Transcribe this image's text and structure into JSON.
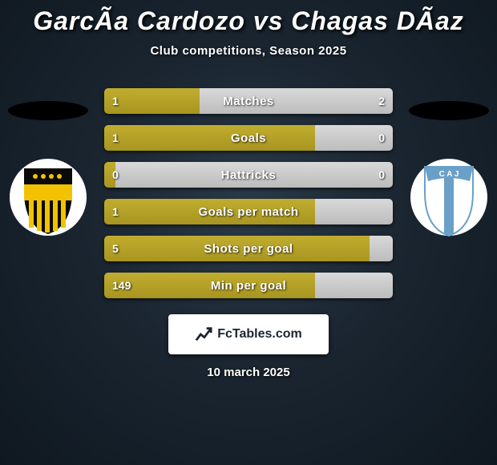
{
  "title": "GarcÃ­a Cardozo vs Chagas DÃ­az",
  "subtitle": "Club competitions, Season 2025",
  "date": "10 march 2025",
  "footer_brand": "FcTables.com",
  "colors": {
    "bar_fill": "#b39e25",
    "bar_rest": "#cfcfcf",
    "bg_inner": "#2a3a48",
    "bg_outer": "#0f1820"
  },
  "crest_left": {
    "bg": "#ffffff",
    "band": "#f2c200",
    "stripe": "#0a0a0a"
  },
  "crest_right": {
    "bg": "#ffffff",
    "stripe": "#6aa0c8",
    "letters": "C A J"
  },
  "rows": [
    {
      "label": "Matches",
      "left": "1",
      "right": "2",
      "fill_pct": 33
    },
    {
      "label": "Goals",
      "left": "1",
      "right": "0",
      "fill_pct": 73
    },
    {
      "label": "Hattricks",
      "left": "0",
      "right": "0",
      "fill_pct": 4
    },
    {
      "label": "Goals per match",
      "left": "1",
      "right": "",
      "fill_pct": 73
    },
    {
      "label": "Shots per goal",
      "left": "5",
      "right": "",
      "fill_pct": 92
    },
    {
      "label": "Min per goal",
      "left": "149",
      "right": "",
      "fill_pct": 73
    }
  ]
}
